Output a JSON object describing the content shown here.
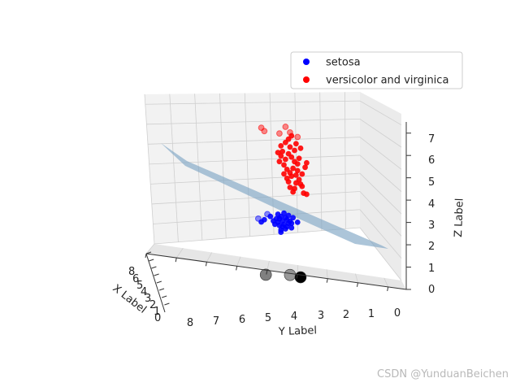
{
  "chart_data": {
    "type": "scatter",
    "title": "",
    "xlabel": "X Label",
    "ylabel": "Y Label",
    "zlabel": "Z Label",
    "x_ticks": [
      "8",
      "6",
      "5",
      "4",
      "3",
      "2",
      "1",
      "0"
    ],
    "y_ticks": [
      "8",
      "7",
      "6",
      "5",
      "4",
      "3",
      "2",
      "1",
      "0"
    ],
    "z_ticks": [
      "0",
      "1",
      "2",
      "3",
      "4",
      "5",
      "6",
      "7"
    ],
    "zlim": [
      0,
      7
    ],
    "grid": true,
    "legend_placement": "top-right",
    "series": [
      {
        "name": "setosa",
        "color": "#0000ff",
        "points": [
          {
            "y": 3.9,
            "z": 3.05
          },
          {
            "y": 3.8,
            "z": 2.95
          },
          {
            "y": 3.7,
            "z": 3.1
          },
          {
            "y": 3.6,
            "z": 2.85
          },
          {
            "y": 3.85,
            "z": 3.15
          },
          {
            "y": 3.75,
            "z": 2.8
          },
          {
            "y": 3.95,
            "z": 2.9
          },
          {
            "y": 3.65,
            "z": 3.0
          },
          {
            "y": 3.55,
            "z": 2.95
          },
          {
            "y": 3.9,
            "z": 2.75
          },
          {
            "y": 4.0,
            "z": 3.05
          },
          {
            "y": 3.7,
            "z": 2.6
          },
          {
            "y": 3.8,
            "z": 2.7
          },
          {
            "y": 3.6,
            "z": 3.2
          },
          {
            "y": 4.1,
            "z": 2.95
          },
          {
            "y": 4.2,
            "z": 3.15
          },
          {
            "y": 4.4,
            "z": 3.0
          },
          {
            "y": 4.5,
            "z": 2.9
          },
          {
            "y": 3.5,
            "z": 2.85
          },
          {
            "y": 3.95,
            "z": 3.25
          },
          {
            "y": 3.85,
            "z": 2.55
          },
          {
            "y": 3.75,
            "z": 3.3
          },
          {
            "y": 3.65,
            "z": 2.7
          },
          {
            "y": 3.45,
            "z": 3.1
          },
          {
            "y": 4.05,
            "z": 2.8
          },
          {
            "y": 3.5,
            "z": 2.65
          },
          {
            "y": 3.3,
            "z": 2.9
          },
          {
            "y": 3.85,
            "z": 2.45
          }
        ]
      },
      {
        "name": "versicolor and virginica",
        "color": "#ff0000",
        "points": [
          {
            "y": 3.6,
            "z": 5.95
          },
          {
            "y": 3.5,
            "z": 5.8
          },
          {
            "y": 3.4,
            "z": 5.6
          },
          {
            "y": 3.7,
            "z": 5.7
          },
          {
            "y": 3.3,
            "z": 5.5
          },
          {
            "y": 3.45,
            "z": 5.3
          },
          {
            "y": 3.55,
            "z": 5.1
          },
          {
            "y": 3.35,
            "z": 5.0
          },
          {
            "y": 3.25,
            "z": 4.8
          },
          {
            "y": 3.6,
            "z": 4.7
          },
          {
            "y": 3.2,
            "z": 4.6
          },
          {
            "y": 3.4,
            "z": 4.4
          },
          {
            "y": 3.1,
            "z": 4.2
          },
          {
            "y": 3.75,
            "z": 5.45
          },
          {
            "y": 3.65,
            "z": 5.25
          },
          {
            "y": 3.3,
            "z": 5.2
          },
          {
            "y": 3.5,
            "z": 4.95
          },
          {
            "y": 3.15,
            "z": 4.5
          },
          {
            "y": 3.0,
            "z": 4.15
          },
          {
            "y": 3.85,
            "z": 5.85
          },
          {
            "y": 3.8,
            "z": 6.05
          },
          {
            "y": 3.55,
            "z": 6.25
          },
          {
            "y": 3.4,
            "z": 6.1
          },
          {
            "y": 3.35,
            "z": 6.4
          },
          {
            "y": 3.6,
            "z": 6.6
          },
          {
            "y": 3.5,
            "z": 6.75
          },
          {
            "y": 3.7,
            "z": 6.45
          },
          {
            "y": 3.25,
            "z": 5.75
          },
          {
            "y": 3.45,
            "z": 4.25
          },
          {
            "y": 3.15,
            "z": 5.05
          },
          {
            "y": 3.05,
            "z": 5.35
          },
          {
            "y": 3.9,
            "z": 5.6
          },
          {
            "y": 3.95,
            "z": 6.0
          },
          {
            "y": 3.2,
            "z": 6.2
          },
          {
            "y": 3.65,
            "z": 4.85
          },
          {
            "y": 3.35,
            "z": 4.65
          },
          {
            "y": 3.55,
            "z": 4.45
          },
          {
            "y": 3.0,
            "z": 5.55
          },
          {
            "y": 3.75,
            "z": 5.05
          },
          {
            "y": 3.85,
            "z": 6.3
          }
        ]
      }
    ],
    "faded_points": [
      {
        "series": "versicolor and virginica",
        "y": 4.5,
        "z": 7.1
      },
      {
        "series": "versicolor and virginica",
        "y": 3.7,
        "z": 7.15
      },
      {
        "series": "versicolor and virginica",
        "y": 4.4,
        "z": 6.95
      },
      {
        "series": "versicolor and virginica",
        "y": 3.9,
        "z": 6.85
      },
      {
        "series": "versicolor and virginica",
        "y": 3.3,
        "z": 6.7
      },
      {
        "series": "versicolor and virginica",
        "y": 3.55,
        "z": 6.9
      },
      {
        "series": "setosa",
        "y": 4.6,
        "z": 3.05
      },
      {
        "series": "setosa",
        "y": 4.3,
        "z": 3.25
      }
    ],
    "reference_points": [
      {
        "y": 4.35,
        "z": 0.55,
        "color": "#555555",
        "size": "large"
      },
      {
        "y": 3.55,
        "z": 0.55,
        "color": "#777777",
        "size": "large"
      },
      {
        "y": 3.2,
        "z": 0.45,
        "color": "#000000",
        "size": "large"
      }
    ],
    "plane": {
      "color": "#7fa6c4",
      "opacity": 0.65
    }
  },
  "watermark": "CSDN @YunduanBeichen"
}
